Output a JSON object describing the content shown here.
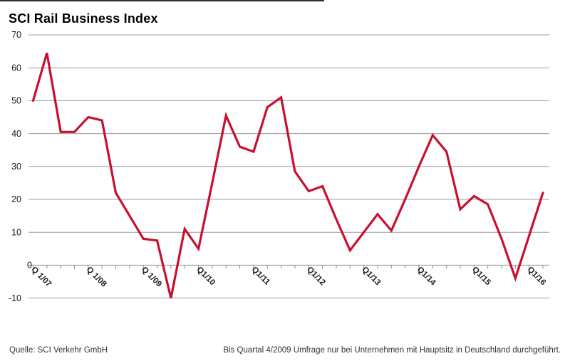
{
  "title": "SCI Rail Business Index",
  "footer": {
    "source": "Quelle: SCI Verkehr GmbH",
    "note": "Bis Quartal 4/2009 Umfrage nur bei Unternehmen mit Hauptsitz in Deutschland durchgeführt."
  },
  "chart_data": {
    "type": "line",
    "title": "SCI Rail Business Index",
    "x": [
      "Q1/07",
      "Q2/07",
      "Q3/07",
      "Q4/07",
      "Q1/08",
      "Q2/08",
      "Q3/08",
      "Q4/08",
      "Q1/09",
      "Q2/09",
      "Q3/09",
      "Q4/09",
      "Q1/10",
      "Q2/10",
      "Q3/10",
      "Q4/10",
      "Q1/11",
      "Q2/11",
      "Q3/11",
      "Q4/11",
      "Q1/12",
      "Q2/12",
      "Q3/12",
      "Q4/12",
      "Q1/13",
      "Q2/13",
      "Q3/13",
      "Q4/13",
      "Q1/14",
      "Q2/14",
      "Q3/14",
      "Q4/14",
      "Q1/15",
      "Q2/15",
      "Q3/15",
      "Q4/15",
      "Q1/16",
      "Q2/16"
    ],
    "values": [
      50,
      64.5,
      40.5,
      40.5,
      45,
      44,
      22,
      15,
      8,
      7.5,
      -10,
      11,
      5,
      25,
      45.5,
      36,
      34.5,
      48,
      51,
      28.5,
      22.5,
      24,
      14,
      4.5,
      10,
      15.5,
      10.5,
      20,
      30,
      39.5,
      34.5,
      17,
      21,
      18.5,
      8,
      -4,
      9,
      22
    ],
    "x_tick_labels": [
      "Q 1/07",
      "Q 1/08",
      "Q 1/09",
      "Q1/10",
      "Q1/11",
      "Q1/12",
      "Q1/13",
      "Q1/14",
      "Q1/15",
      "Q1/16"
    ],
    "x_tick_label_indices": [
      0,
      4,
      8,
      12,
      16,
      20,
      24,
      28,
      32,
      36
    ],
    "y_ticks": [
      70,
      60,
      50,
      40,
      30,
      20,
      10,
      0,
      -10
    ],
    "ylim": [
      -10,
      70
    ],
    "grid": true,
    "legend": false,
    "line_color": "#c8102e",
    "grid_color": "#9c9c9c",
    "axis_color": "#8f8f8f",
    "label_color": "#1a1a1a"
  }
}
